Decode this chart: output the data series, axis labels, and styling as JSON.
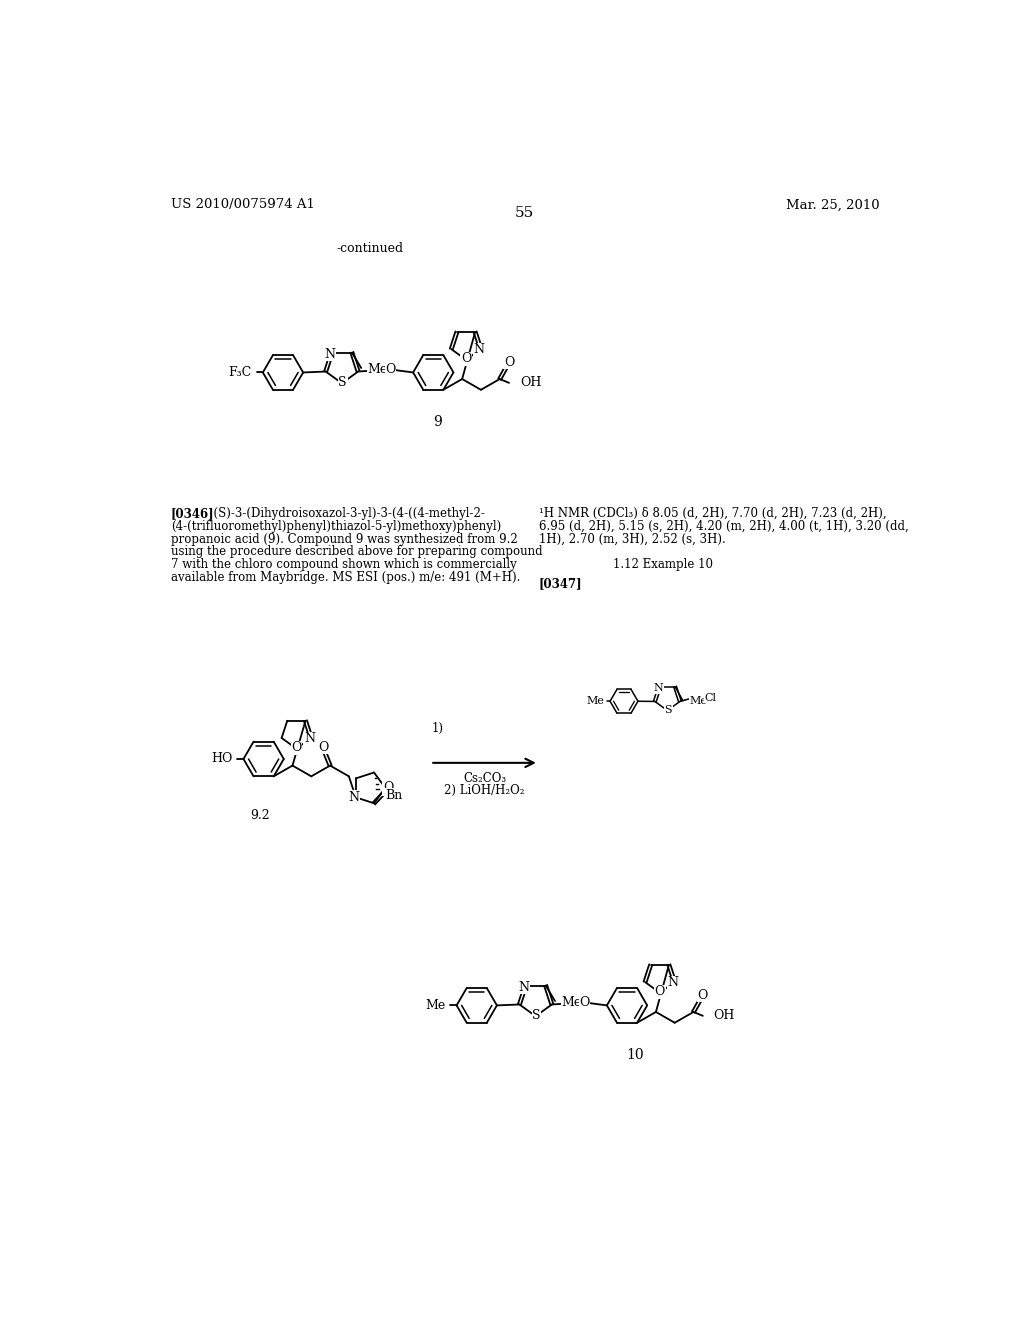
{
  "page_header_left": "US 2010/0075974 A1",
  "page_header_right": "Mar. 25, 2010",
  "page_number": "55",
  "continued_label": "-continued",
  "compound9_label": "9",
  "compound92_label": "9.2",
  "compound10_label": "10",
  "background_color": "#ffffff",
  "text_color": "#000000"
}
